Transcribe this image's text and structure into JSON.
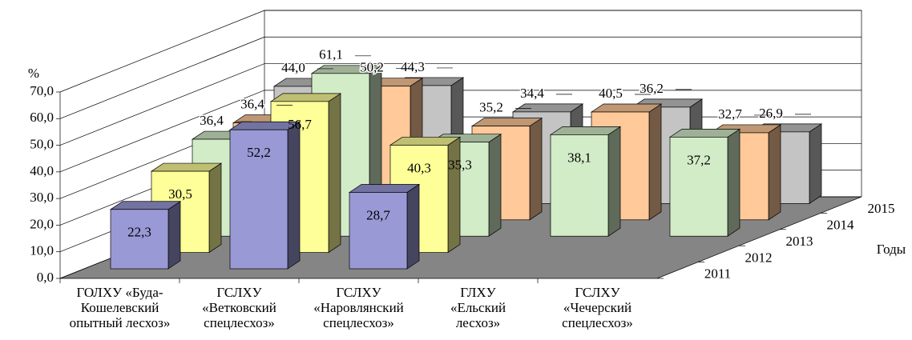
{
  "chart_data": {
    "type": "bar3d",
    "y_label": "%",
    "depth_label": "Годы",
    "categories": [
      [
        "ГОЛХУ «Буда-",
        "Кошелевский",
        "опытный лесхоз»"
      ],
      [
        "ГСЛХУ",
        "«Ветковский",
        "спецлесхоз»"
      ],
      [
        "ГСЛХУ",
        "«Наровлянский",
        "спецлесхоз»"
      ],
      [
        "ГЛХУ",
        "«Ельский",
        "лесхоз»"
      ],
      [
        "ГСЛХУ",
        "«Чечерский",
        "спецлесхоз»"
      ]
    ],
    "series": [
      {
        "name": "2011",
        "color": "#9999d6",
        "values": [
          22.3,
          52.2,
          28.7,
          null,
          null
        ],
        "value_labels": [
          "22,3",
          "52,2",
          "28,7",
          null,
          null
        ]
      },
      {
        "name": "2012",
        "color": "#ffff99",
        "values": [
          30.5,
          56.7,
          40.3,
          null,
          null
        ],
        "value_labels": [
          "30,5",
          "56,7",
          "40,3",
          null,
          null
        ]
      },
      {
        "name": "2013",
        "color": "#d3ecc8",
        "values": [
          36.4,
          61.1,
          35.3,
          38.1,
          37.2
        ],
        "value_labels": [
          "36,4",
          "61,1",
          "35,3",
          "38,1",
          "37,2"
        ]
      },
      {
        "name": "2014",
        "color": "#ffc999",
        "values": [
          36.4,
          50.2,
          35.2,
          40.5,
          32.7
        ],
        "value_labels": [
          "36,4",
          "50,2",
          "35,2",
          "40,5",
          "32,7"
        ]
      },
      {
        "name": "2015",
        "color": "#c4c4c4",
        "values": [
          44.0,
          44.3,
          34.4,
          36.2,
          26.9
        ],
        "value_labels": [
          "44,0",
          "44,3",
          "34,4",
          "36,2",
          "26,9"
        ]
      }
    ],
    "ylim": [
      0,
      70
    ],
    "yticks": [
      {
        "value": 0,
        "label": "0,0"
      },
      {
        "value": 10,
        "label": "10,0"
      },
      {
        "value": 20,
        "label": "20,0"
      },
      {
        "value": 30,
        "label": "30,0"
      },
      {
        "value": 40,
        "label": "40,0"
      },
      {
        "value": 50,
        "label": "50,0"
      },
      {
        "value": 60,
        "label": "60,0"
      },
      {
        "value": 70,
        "label": "70,0"
      }
    ],
    "grid": true
  }
}
